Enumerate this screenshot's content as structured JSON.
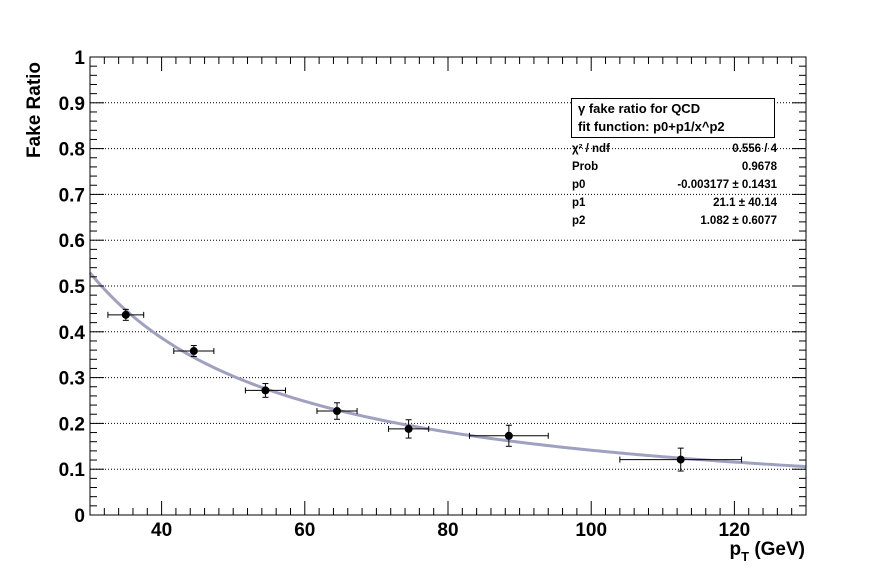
{
  "chart_data": {
    "type": "scatter",
    "title": "",
    "xlabel": "p",
    "xlabel_sub": "T",
    "xlabel_unit": " (GeV)",
    "ylabel": "Fake Ratio",
    "xlim": [
      30,
      130
    ],
    "ylim": [
      0,
      1
    ],
    "x_ticks": [
      40,
      60,
      80,
      100,
      120
    ],
    "y_ticks": [
      "0",
      "0.1",
      "0.2",
      "0.3",
      "0.4",
      "0.5",
      "0.6",
      "0.7",
      "0.8",
      "0.9",
      "1"
    ],
    "grid": "horizontal dotted",
    "series": [
      {
        "name": "data",
        "points": [
          {
            "x": 35.0,
            "y": 0.437,
            "xerr": 2.5,
            "yerr": 0.012
          },
          {
            "x": 44.5,
            "y": 0.358,
            "xerr": 2.8,
            "yerr": 0.012
          },
          {
            "x": 54.5,
            "y": 0.272,
            "xerr": 2.8,
            "yerr": 0.015
          },
          {
            "x": 64.5,
            "y": 0.227,
            "xerr": 2.8,
            "yerr": 0.018
          },
          {
            "x": 74.5,
            "y": 0.188,
            "xerr": 2.8,
            "yerr": 0.02
          },
          {
            "x": 88.5,
            "y": 0.173,
            "xerr": 5.5,
            "yerr": 0.023
          },
          {
            "x": 112.5,
            "y": 0.121,
            "xerr": 8.5,
            "yerr": 0.025
          }
        ]
      }
    ],
    "fit": {
      "name": "fit function: p0+p1/x^p2",
      "color": "#a0a0c0",
      "p0": -0.003177,
      "p1": 21.1,
      "p2": 1.082
    },
    "legend": {
      "placement": "top-right",
      "line1": "γ fake ratio for QCD",
      "line2": "fit function: p0+p1/x^p2"
    },
    "stats": [
      {
        "key": "χ² / ndf",
        "value": "0.556 / 4"
      },
      {
        "key": "Prob",
        "value": "0.9678"
      },
      {
        "key": "p0",
        "value": "-0.003177 ± 0.1431"
      },
      {
        "key": "p1",
        "value": "21.1 ± 40.14"
      },
      {
        "key": "p2",
        "value": "1.082 ± 0.6077"
      }
    ]
  }
}
